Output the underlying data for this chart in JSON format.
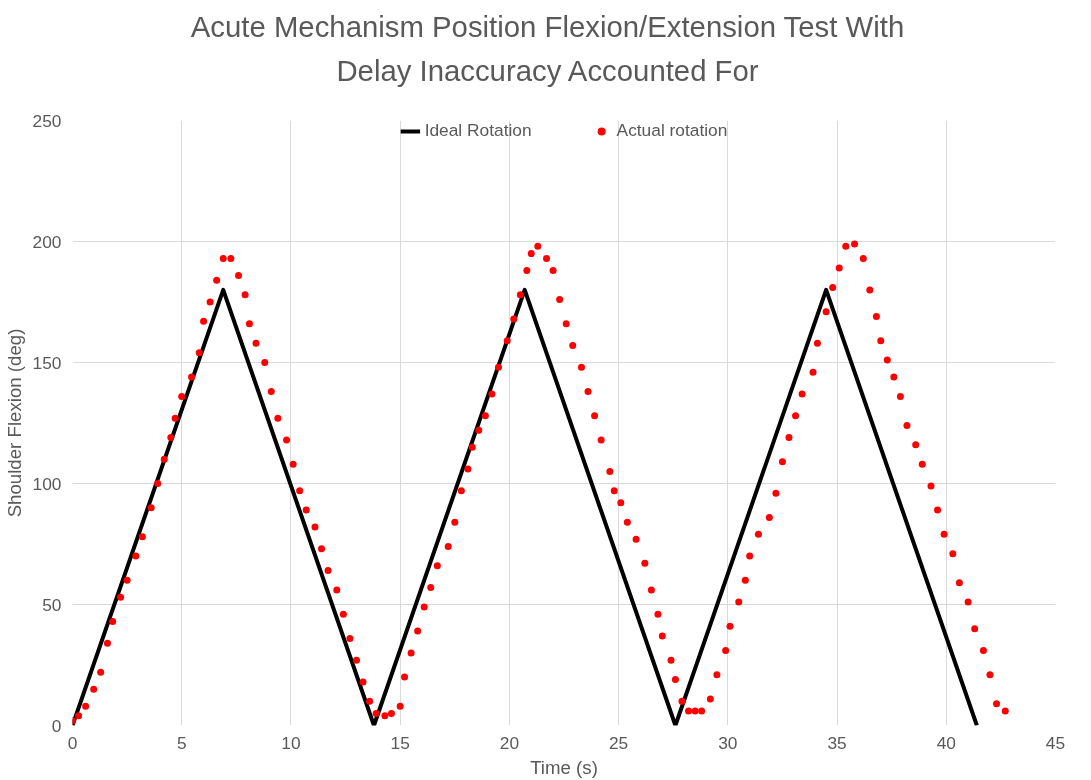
{
  "chart_data": {
    "type": "line",
    "title": "Acute Mechanism Position Flexion/Extension Test With Delay Inaccuracy Accounted For",
    "xlabel": "Time (s)",
    "ylabel": "Shoulder Flexion (deg)",
    "xlim": [
      0,
      45
    ],
    "xticks": [
      0,
      5,
      10,
      15,
      20,
      25,
      30,
      35,
      40,
      45
    ],
    "ylim": [
      0,
      250
    ],
    "yticks": [
      0,
      50,
      100,
      150,
      200,
      250
    ],
    "grid": true,
    "legend": "top",
    "series": [
      {
        "name": "Ideal Rotation",
        "color": "#000000",
        "x": [
          0,
          6.9,
          13.8,
          20.7,
          27.6,
          34.5,
          41.4
        ],
        "values": [
          0,
          180,
          0,
          180,
          0,
          180,
          0
        ]
      },
      {
        "name": "Actual rotation",
        "type": "scatter",
        "color": "#ff0000",
        "x": [
          0,
          0.28,
          0.6,
          0.97,
          1.29,
          1.6,
          1.84,
          2.2,
          2.5,
          2.9,
          3.2,
          3.6,
          3.9,
          4.2,
          4.5,
          4.7,
          5.0,
          5.45,
          5.8,
          6.0,
          6.3,
          6.6,
          6.9,
          7.25,
          7.6,
          7.9,
          8.1,
          8.4,
          8.8,
          9.1,
          9.4,
          9.8,
          10.1,
          10.4,
          10.7,
          11.1,
          11.4,
          11.7,
          12.1,
          12.4,
          12.7,
          13.0,
          13.3,
          13.6,
          13.9,
          14.3,
          14.6,
          15.0,
          15.2,
          15.5,
          15.8,
          16.1,
          16.4,
          16.7,
          17.2,
          17.5,
          17.8,
          18.1,
          18.3,
          18.6,
          18.9,
          19.2,
          19.5,
          19.9,
          20.2,
          20.5,
          20.8,
          21.0,
          21.3,
          21.7,
          22.0,
          22.3,
          22.6,
          22.9,
          23.3,
          23.6,
          23.9,
          24.2,
          24.6,
          24.8,
          25.1,
          25.4,
          25.8,
          26.2,
          26.5,
          26.8,
          27.0,
          27.4,
          27.6,
          27.9,
          28.2,
          28.5,
          28.8,
          29.2,
          29.5,
          29.9,
          30.1,
          30.5,
          30.8,
          31.0,
          31.4,
          31.9,
          32.2,
          32.5,
          32.8,
          33.1,
          33.4,
          33.9,
          34.1,
          34.5,
          34.8,
          35.1,
          35.4,
          35.8,
          36.2,
          36.5,
          36.8,
          37.0,
          37.3,
          37.6,
          37.9,
          38.2,
          38.6,
          38.9,
          39.3,
          39.6,
          39.9,
          40.3,
          40.6,
          41.0,
          41.3,
          41.7,
          42.0,
          42.3,
          42.7
        ],
        "values": [
          2,
          4,
          8,
          15,
          22,
          34,
          43,
          53,
          60,
          70,
          78,
          90,
          100,
          110,
          119,
          127,
          136,
          144,
          154,
          167,
          175,
          184,
          193,
          193,
          186,
          178,
          166,
          158,
          150,
          138,
          127,
          118,
          108,
          97,
          89,
          82,
          73,
          64,
          56,
          46,
          36,
          27,
          18,
          10,
          5,
          4,
          5,
          8,
          20,
          30,
          39,
          49,
          57,
          66,
          74,
          84,
          97,
          106,
          115,
          122,
          128,
          137,
          148,
          159,
          168,
          178,
          188,
          195,
          198,
          193,
          188,
          176,
          166,
          157,
          148,
          138,
          128,
          118,
          105,
          97,
          92,
          84,
          77,
          67,
          56,
          46,
          37,
          27,
          19,
          10,
          6,
          6,
          6,
          11,
          21,
          31,
          41,
          51,
          60,
          70,
          79,
          86,
          96,
          109,
          119,
          128,
          137,
          146,
          158,
          171,
          181,
          189,
          198,
          199,
          193,
          180,
          169,
          159,
          151,
          144,
          136,
          124,
          116,
          108,
          99,
          89,
          79,
          71,
          59,
          51,
          40,
          31,
          21,
          9,
          6
        ]
      }
    ]
  }
}
